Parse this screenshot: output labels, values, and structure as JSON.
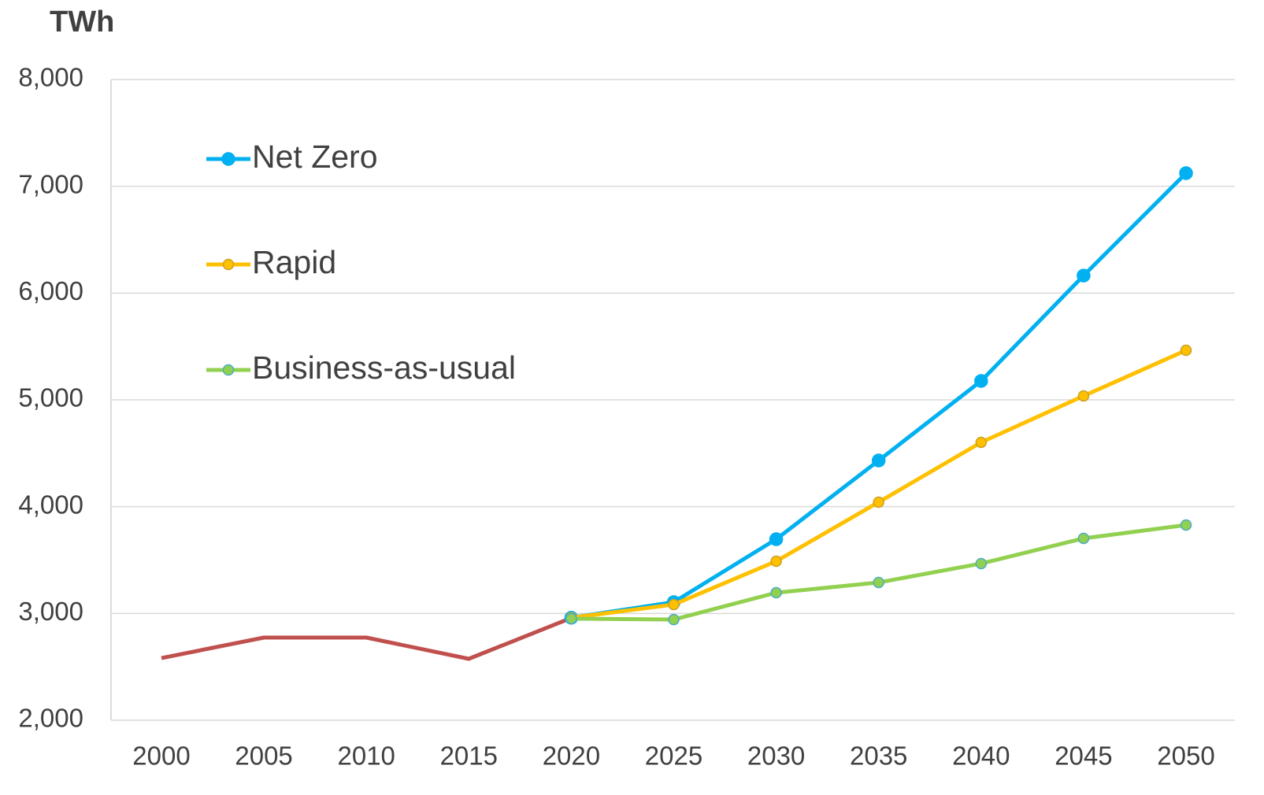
{
  "chart_data": {
    "type": "line",
    "y_label": "TWh",
    "categories": [
      "2000",
      "2005",
      "2010",
      "2015",
      "2020",
      "2025",
      "2030",
      "2035",
      "2040",
      "2045",
      "2050"
    ],
    "series": [
      {
        "color": "#c0504d",
        "values": [
          2582,
          2774,
          2774,
          2575,
          2958,
          null,
          null,
          null,
          null,
          null,
          null
        ]
      },
      {
        "name": "Net Zero",
        "color": "#00b0f0",
        "marker_edge": "#00b0f0",
        "values": [
          null,
          null,
          null,
          null,
          2960,
          3106,
          3695,
          4432,
          5177,
          6164,
          7123
        ]
      },
      {
        "name": "Rapid",
        "color": "#ffc000",
        "marker_edge": "#c9a227",
        "values": [
          null,
          null,
          null,
          null,
          2960,
          3083,
          3489,
          4042,
          4602,
          5037,
          5464
        ]
      },
      {
        "name": "Business-as-usual",
        "color": "#92d050",
        "marker_edge": "#4bacc6",
        "values": [
          null,
          null,
          null,
          null,
          2951,
          2943,
          3194,
          3290,
          3467,
          3703,
          3828
        ]
      }
    ],
    "ylim": [
      2000,
      8000
    ],
    "yticks": [
      {
        "value": 2000,
        "label": "2,000"
      },
      {
        "value": 3000,
        "label": "3,000"
      },
      {
        "value": 4000,
        "label": "4,000"
      },
      {
        "value": 5000,
        "label": "5,000"
      },
      {
        "value": 6000,
        "label": "6,000"
      },
      {
        "value": 7000,
        "label": "7,000"
      },
      {
        "value": 8000,
        "label": "8,000"
      }
    ],
    "grid": true,
    "legend": "upper left"
  }
}
